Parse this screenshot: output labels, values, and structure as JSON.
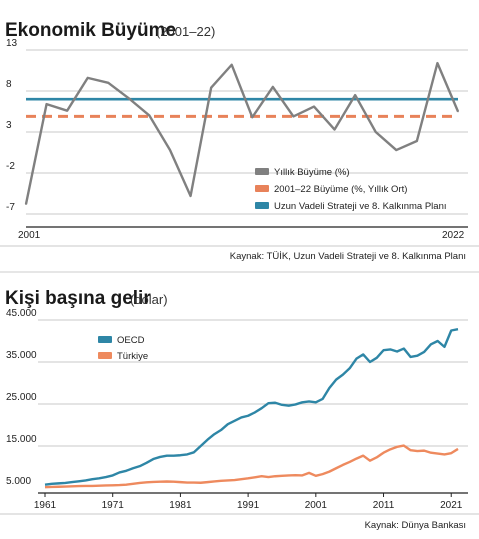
{
  "colors": {
    "growth": "#808080",
    "average": "#e8825a",
    "plan": "#2e86a6",
    "oecd": "#2e86a6",
    "turkey": "#ee8a5e",
    "grid": "#c8c8c8",
    "axis": "#222222"
  },
  "chart_data": [
    {
      "type": "line",
      "title": "Ekonomik Büyüme",
      "subtitle": "(2001–22)",
      "ylim": [
        -7,
        13
      ],
      "yticks": [
        "13",
        "8",
        "3",
        "-2",
        "-7"
      ],
      "ytick_values": [
        13,
        8,
        3,
        -2,
        -7
      ],
      "xtick_labels": [
        "2001",
        "2022"
      ],
      "x": [
        2001,
        2002,
        2003,
        2004,
        2005,
        2006,
        2007,
        2008,
        2009,
        2010,
        2011,
        2012,
        2013,
        2014,
        2015,
        2016,
        2017,
        2018,
        2019,
        2020,
        2021,
        2022
      ],
      "series": [
        {
          "name": "Yıllık Büyüme (%)",
          "values": [
            -5.8,
            6.4,
            5.6,
            9.6,
            9.0,
            7.1,
            5.0,
            0.8,
            -4.8,
            8.4,
            11.2,
            4.8,
            8.5,
            4.9,
            6.1,
            3.3,
            7.5,
            3.0,
            0.8,
            1.9,
            11.4,
            5.5
          ]
        },
        {
          "name": "2001–22 Büyüme (%, Yıllık Ort)",
          "constant": 4.9
        },
        {
          "name": "Uzun Vadeli Strateji ve 8. Kalkınma Planı",
          "constant": 7.0
        }
      ],
      "legend": [
        "Yıllık Büyüme (%)",
        "2001–22 Büyüme (%, Yıllık Ort)",
        "Uzun Vadeli Strateji ve 8. Kalkınma Planı"
      ],
      "source": "Kaynak: TÜİK, Uzun Vadeli Strateji ve 8. Kalkınma Planı"
    },
    {
      "type": "line",
      "title": "Kişi başına gelir",
      "subtitle": "(dolar)",
      "ylim": [
        5000,
        45000
      ],
      "yticks": [
        "45.000",
        "35.000",
        "25.000",
        "15.000",
        "5.000"
      ],
      "ytick_values": [
        45000,
        35000,
        25000,
        15000,
        5000
      ],
      "xtick_labels": [
        "1961",
        "1971",
        "1981",
        "1991",
        "2001",
        "2011",
        "2021"
      ],
      "xtick_values": [
        1961,
        1971,
        1981,
        1991,
        2001,
        2011,
        2021
      ],
      "x": [
        1961,
        1962,
        1963,
        1964,
        1965,
        1966,
        1967,
        1968,
        1969,
        1970,
        1971,
        1972,
        1973,
        1974,
        1975,
        1976,
        1977,
        1978,
        1979,
        1980,
        1981,
        1982,
        1983,
        1984,
        1985,
        1986,
        1987,
        1988,
        1989,
        1990,
        1991,
        1992,
        1993,
        1994,
        1995,
        1996,
        1997,
        1998,
        1999,
        2000,
        2001,
        2002,
        2003,
        2004,
        2005,
        2006,
        2007,
        2008,
        2009,
        2010,
        2011,
        2012,
        2013,
        2014,
        2015,
        2016,
        2017,
        2018,
        2019,
        2020,
        2021,
        2022
      ],
      "series": [
        {
          "name": "OECD",
          "values": [
            5800,
            6000,
            6100,
            6200,
            6400,
            6600,
            6800,
            7100,
            7300,
            7600,
            8000,
            8700,
            9100,
            9700,
            10200,
            11000,
            11900,
            12400,
            12700,
            12700,
            12800,
            13000,
            13500,
            15000,
            16500,
            17800,
            18800,
            20200,
            21000,
            21800,
            22200,
            23000,
            24000,
            25200,
            25300,
            24800,
            24600,
            24900,
            25400,
            25600,
            25400,
            26200,
            28800,
            30800,
            32000,
            33500,
            35800,
            36800,
            35000,
            36000,
            37800,
            38000,
            37500,
            38200,
            36200,
            36500,
            37400,
            39200,
            40000,
            38600,
            42500,
            42800
          ]
        },
        {
          "name": "Türkiye",
          "values": [
            5200,
            5250,
            5300,
            5350,
            5400,
            5450,
            5500,
            5500,
            5550,
            5600,
            5650,
            5700,
            5800,
            6000,
            6200,
            6350,
            6450,
            6500,
            6550,
            6500,
            6400,
            6300,
            6300,
            6250,
            6400,
            6550,
            6700,
            6800,
            6900,
            7100,
            7300,
            7550,
            7800,
            7600,
            7800,
            7900,
            8000,
            8050,
            8000,
            8600,
            7900,
            8300,
            8900,
            9700,
            10500,
            11200,
            12000,
            12700,
            11500,
            12300,
            13400,
            14200,
            14800,
            15100,
            14000,
            13800,
            13900,
            13400,
            13200,
            13000,
            13300,
            14300
          ]
        }
      ],
      "legend": [
        "OECD",
        "Türkiye"
      ],
      "source": "Kaynak: Dünya Bankası"
    }
  ]
}
